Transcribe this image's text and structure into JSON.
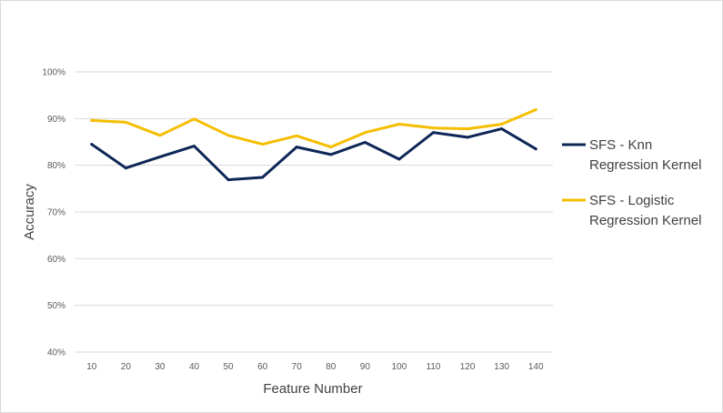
{
  "chart_data": {
    "type": "line",
    "title": "",
    "xlabel": "Feature Number",
    "ylabel": "Accuracy",
    "categories": [
      "10",
      "20",
      "30",
      "40",
      "50",
      "60",
      "70",
      "80",
      "90",
      "100",
      "110",
      "120",
      "130",
      "140"
    ],
    "y_ticks": [
      "40%",
      "50%",
      "60%",
      "70%",
      "80%",
      "90%",
      "100%"
    ],
    "ylim": [
      40,
      100
    ],
    "grid": true,
    "legend_position": "right",
    "series": [
      {
        "name": "SFS - Knn Regression Kernel",
        "legend_lines": [
          "SFS - Knn",
          "Regression Kernel"
        ],
        "color": "#0e2757",
        "values": [
          84.5,
          79.4,
          81.8,
          84.1,
          76.9,
          77.4,
          83.9,
          82.3,
          84.9,
          81.3,
          87.0,
          86.0,
          87.8,
          83.5
        ]
      },
      {
        "name": "SFS - Logistic Regression Kernel",
        "legend_lines": [
          "SFS - Logistic",
          "Regression Kernel"
        ],
        "color": "#f5be00",
        "values": [
          89.6,
          89.2,
          86.4,
          89.9,
          86.4,
          84.5,
          86.3,
          83.9,
          87.0,
          88.8,
          88.0,
          87.8,
          88.8,
          91.9
        ]
      }
    ]
  }
}
